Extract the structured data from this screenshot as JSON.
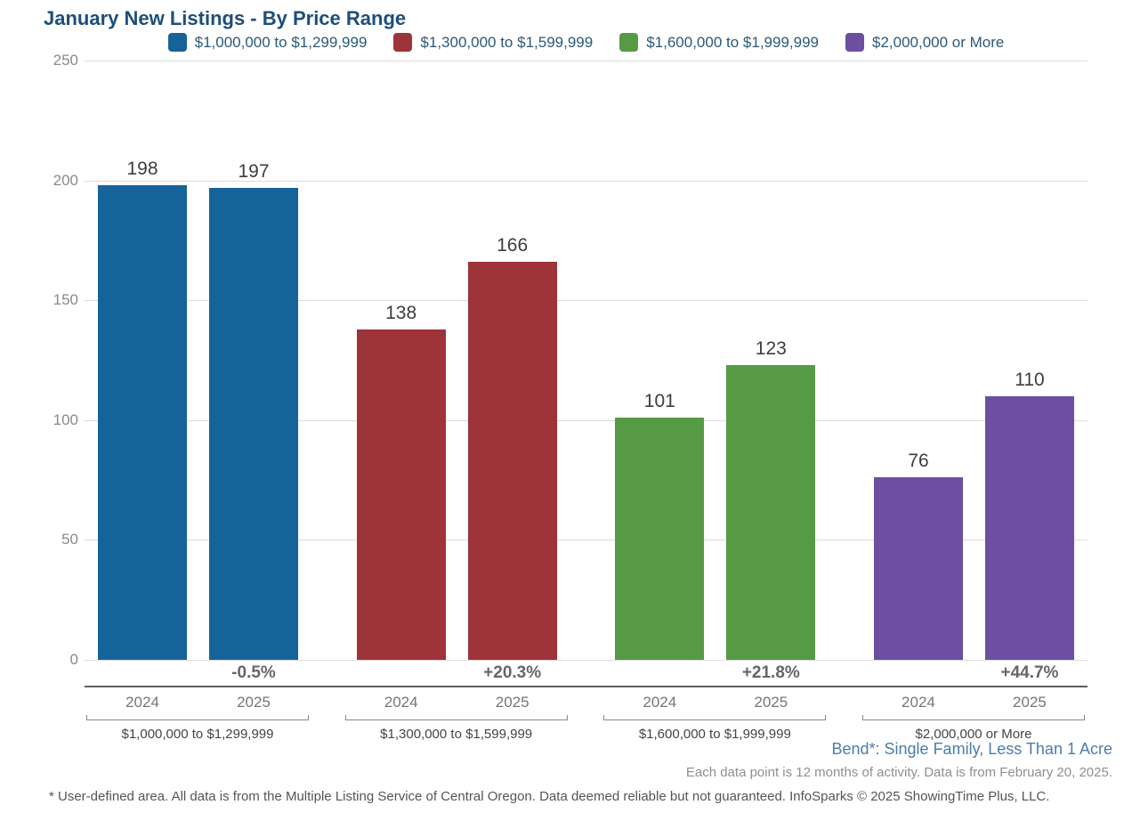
{
  "title": "January New Listings - By Price Range",
  "chart_data": {
    "type": "bar",
    "title": "January New Listings - By Price Range",
    "categories": [
      "2024",
      "2025"
    ],
    "ylim": [
      0,
      250
    ],
    "yticks": [
      0,
      50,
      100,
      150,
      200,
      250
    ],
    "grid": true,
    "legend_position": "top",
    "groups": [
      {
        "label": "$1,000,000 to $1,299,999",
        "color": "#16639a",
        "values": [
          198,
          197
        ],
        "change": "-0.5%"
      },
      {
        "label": "$1,300,000 to $1,599,999",
        "color": "#9e3339",
        "values": [
          138,
          166
        ],
        "change": "+20.3%"
      },
      {
        "label": "$1,600,000 to $1,999,999",
        "color": "#579a46",
        "values": [
          101,
          123
        ],
        "change": "+21.8%"
      },
      {
        "label": "$2,000,000 or More",
        "color": "#6c4fa1",
        "values": [
          76,
          110
        ],
        "change": "+44.7%"
      }
    ]
  },
  "footer": {
    "area_label": "Bend*: Single Family, Less Than 1 Acre",
    "data_note": "Each data point is 12 months of activity. Data is from February 20, 2025.",
    "disclaimer": "* User-defined area. All data is from the Multiple Listing Service of Central Oregon. Data deemed reliable but not guaranteed. InfoSparks © 2025 ShowingTime Plus, LLC."
  },
  "colors": {
    "title_text": "#1f4e79",
    "legend_text": "#2b5977",
    "axis_text": "#8a8a8a",
    "value_text": "#3d3d3d",
    "percent_text": "#666666",
    "area_label_text": "#4a7dab",
    "gridline": "#dcdcdc"
  }
}
